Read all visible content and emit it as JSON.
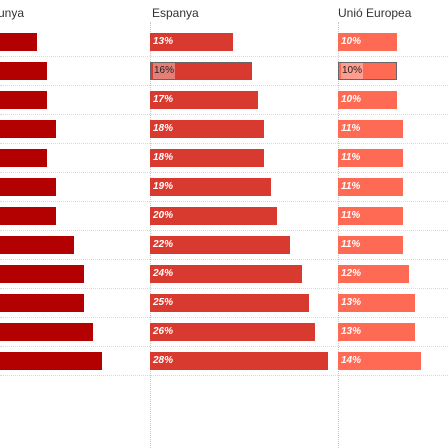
{
  "chart_data": {
    "type": "bar",
    "columns": [
      {
        "name": "unya",
        "color": "#b30000",
        "values": [
          4,
          5,
          5,
          6,
          5,
          6,
          6,
          8,
          9,
          9,
          10,
          11
        ],
        "labels": []
      },
      {
        "name": "Espanya",
        "color": "#d93a30",
        "values": [
          13,
          16,
          17,
          18,
          18,
          19,
          20,
          22,
          24,
          25,
          26,
          28
        ],
        "labels": [
          "13%",
          "16%",
          "17%",
          "18%",
          "18%",
          "19%",
          "20%",
          "22%",
          "24%",
          "25%",
          "26%",
          "28%"
        ]
      },
      {
        "name": "Unió Europea",
        "color": "#ff6a55",
        "values": [
          10,
          10,
          10,
          11,
          11,
          11,
          11,
          11,
          12,
          13,
          13,
          14
        ],
        "labels": [
          "10%",
          "10%",
          "10%",
          "11%",
          "11%",
          "11%",
          "11%",
          "11%",
          "12%",
          "13%",
          "13%",
          "14%"
        ]
      }
    ],
    "highlighted_row": 1,
    "highlight_column": "all"
  }
}
